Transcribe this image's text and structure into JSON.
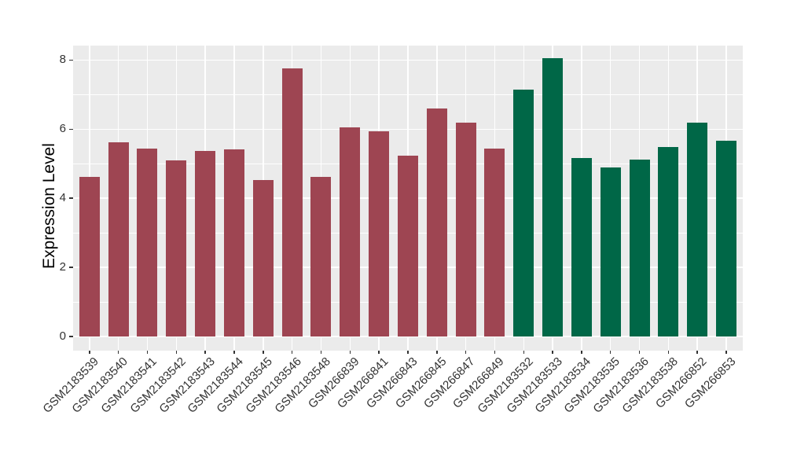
{
  "chart_data": {
    "type": "bar",
    "title": "",
    "xlabel": "",
    "ylabel": "Expression Level",
    "ylim": [
      -0.4,
      8.4
    ],
    "yticks": [
      0,
      2,
      4,
      6,
      8
    ],
    "yminor": [
      1,
      3,
      5,
      7
    ],
    "grid": "on",
    "legend_position": "none",
    "panel_background": "#EBEBEB",
    "grid_color": "#FFFFFF",
    "tick_text_color": "#333333",
    "categories": [
      "GSM2183539",
      "GSM2183540",
      "GSM2183541",
      "GSM2183542",
      "GSM2183543",
      "GSM2183544",
      "GSM2183545",
      "GSM2183546",
      "GSM2183548",
      "GSM266839",
      "GSM266841",
      "GSM266843",
      "GSM266845",
      "GSM266847",
      "GSM266849",
      "GSM2183532",
      "GSM2183533",
      "GSM2183534",
      "GSM2183535",
      "GSM2183536",
      "GSM2183538",
      "GSM266852",
      "GSM266853"
    ],
    "values": [
      4.62,
      5.62,
      5.43,
      5.1,
      5.38,
      5.41,
      4.53,
      7.77,
      4.61,
      6.05,
      5.93,
      5.24,
      6.59,
      6.2,
      5.43,
      7.14,
      8.05,
      5.17,
      4.9,
      5.13,
      5.49,
      6.19,
      5.66
    ],
    "bar_groups": [
      "maroon",
      "maroon",
      "maroon",
      "maroon",
      "maroon",
      "maroon",
      "maroon",
      "maroon",
      "maroon",
      "maroon",
      "maroon",
      "maroon",
      "maroon",
      "maroon",
      "maroon",
      "green",
      "green",
      "green",
      "green",
      "green",
      "green",
      "green",
      "green"
    ],
    "group_colors": {
      "maroon": "#9E4552",
      "green": "#006747"
    }
  }
}
